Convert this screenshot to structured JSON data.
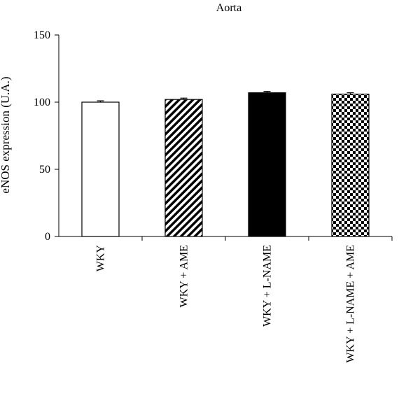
{
  "chart_data": {
    "type": "bar",
    "title": "Aorta",
    "xlabel": "",
    "ylabel": "eNOS expression (U.A.)",
    "ylim": [
      0,
      150
    ],
    "yticks": [
      0,
      50,
      100,
      150
    ],
    "categories": [
      "WKY",
      "WKY + AME",
      "WKY + L-NAME",
      "WKY + L-NAME + AME"
    ],
    "values": [
      100,
      102,
      107,
      106
    ],
    "errors": [
      1,
      1,
      1,
      1
    ],
    "fills": [
      "white",
      "diagonal-hatch",
      "solid-black",
      "checkerboard"
    ],
    "grid": false,
    "legend": "none"
  }
}
